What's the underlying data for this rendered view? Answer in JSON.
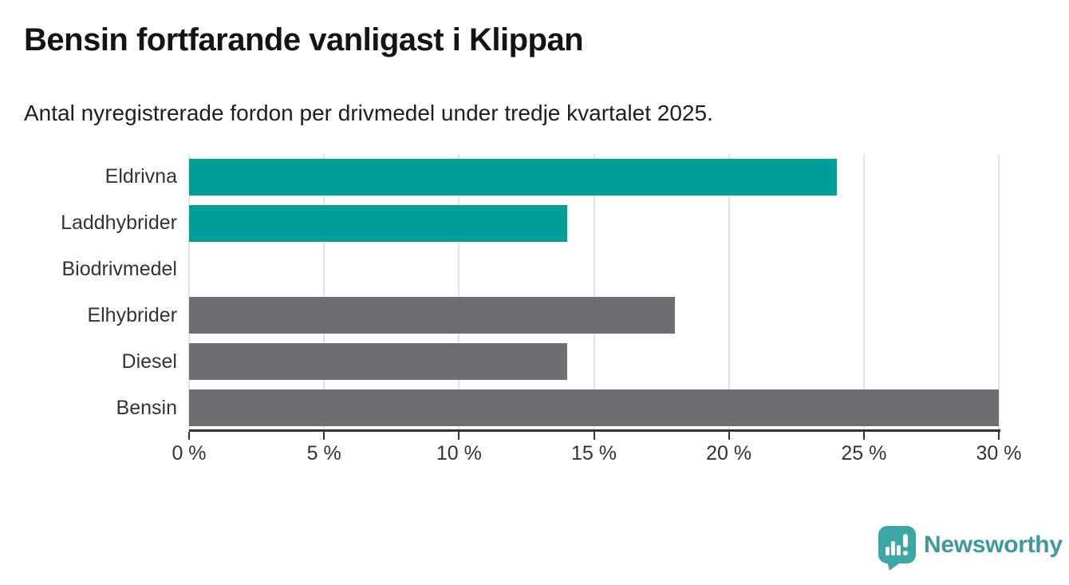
{
  "chart_data": {
    "type": "bar",
    "orientation": "horizontal",
    "title": "Bensin fortfarande vanligast i Klippan",
    "subtitle": "Antal nyregistrerade fordon per drivmedel under tredje kvartalet 2025.",
    "categories": [
      "Eldrivna",
      "Laddhybrider",
      "Biodrivmedel",
      "Elhybrider",
      "Diesel",
      "Bensin"
    ],
    "values": [
      24,
      14,
      0,
      18,
      14,
      30
    ],
    "unit": "%",
    "bar_colors": [
      "#00A099",
      "#00A099",
      "#6E6E73",
      "#6E6E73",
      "#6E6E73",
      "#6E6E73"
    ],
    "highlight_color": "#00A099",
    "default_bar_color": "#6E6E73",
    "xlim": [
      0,
      30
    ],
    "x_ticks": [
      0,
      5,
      10,
      15,
      20,
      25,
      30
    ],
    "x_tick_labels": [
      "0 %",
      "5 %",
      "10 %",
      "15 %",
      "20 %",
      "25 %",
      "30 %"
    ],
    "grid": "vertical",
    "grid_color": "#E4E4E6",
    "axis_color": "#333333",
    "legend": "none"
  },
  "branding": {
    "logo_text": "Newsworthy",
    "logo_icon": "newsworthy-speech-bubble-bar-chart-icon",
    "icon_color": "#3DA8A3",
    "text_color": "#3F989C"
  }
}
